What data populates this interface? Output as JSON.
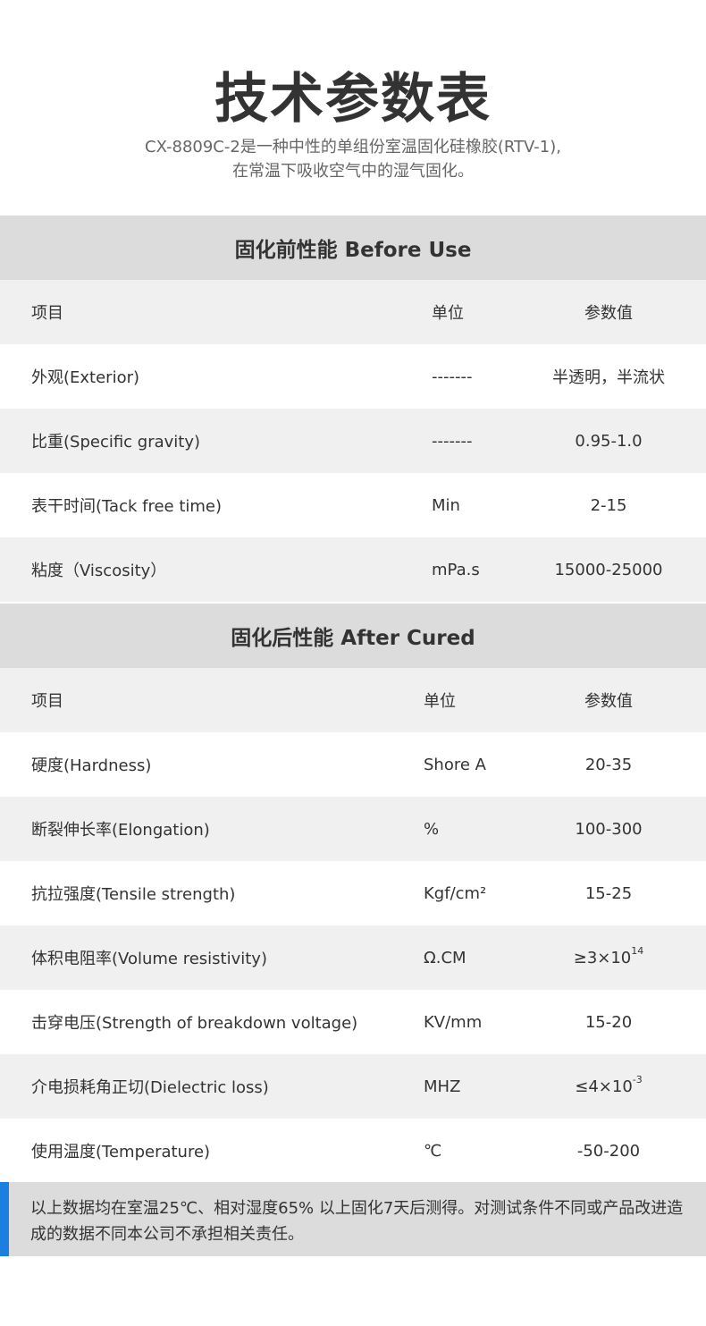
{
  "title": "技术参数表",
  "subtitle": [
    "CX-8809C-2是一种中性的单组份室温固化硅橡胶(RTV-1),",
    "在常温下吸收空气中的湿气固化。"
  ],
  "before": {
    "heading": "固化前性能 Before Use",
    "columns": [
      "项目",
      "单位",
      "参数值"
    ],
    "rows": [
      {
        "item": "外观(Exterior)",
        "unit": "-------",
        "value": "半透明，半流状"
      },
      {
        "item": "比重(Specific gravity)",
        "unit": "-------",
        "value": "0.95-1.0"
      },
      {
        "item": "表干时间(Tack free time)",
        "unit": "Min",
        "value": "2-15"
      },
      {
        "item": "粘度（Viscosity）",
        "unit": "mPa.s",
        "value": "15000-25000"
      }
    ]
  },
  "after": {
    "heading": "固化后性能 After Cured",
    "columns": [
      "项目",
      "单位",
      "参数值"
    ],
    "rows": [
      {
        "item": "硬度(Hardness)",
        "unit": "Shore A",
        "value": "20-35"
      },
      {
        "item": "断裂伸长率(Elongation)",
        "unit": "%",
        "value": "100-300"
      },
      {
        "item": "抗拉强度(Tensile strength)",
        "unit": "Kgf/cm²",
        "value": "15-25"
      },
      {
        "item": "体积电阻率(Volume resistivity)",
        "unit": "Ω.CM",
        "value": "≥3×10",
        "exp": "14"
      },
      {
        "item": "击穿电压(Strength of breakdown voltage)",
        "unit": "KV/mm",
        "value": "15-20"
      },
      {
        "item": "介电损耗角正切(Dielectric loss)",
        "unit": "MHZ",
        "value": "≤4×10",
        "exp": "-3"
      },
      {
        "item": "使用温度(Temperature)",
        "unit": "℃",
        "value": "-50-200"
      }
    ]
  },
  "footnote": "以上数据均在室温25℃、相对湿度65% 以上固化7天后测得。对测试条件不同或产品改进造成的数据不同本公司不承担相关责任。",
  "colors": {
    "accent": "#1a7fe0",
    "section_bg": "#dcdcdc",
    "stripe_bg": "#f0f0f0"
  }
}
